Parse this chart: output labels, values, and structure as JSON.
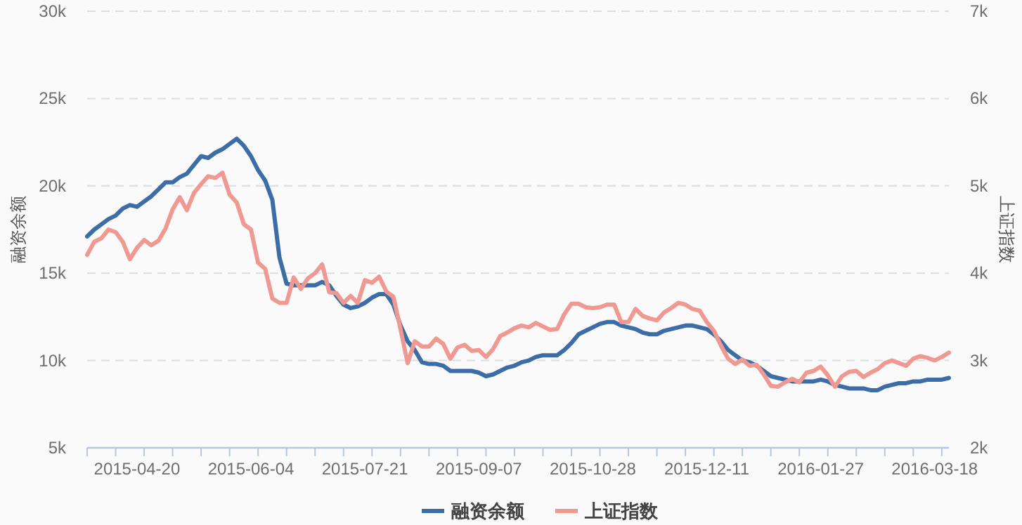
{
  "chart_data": {
    "type": "line",
    "categories": [
      null,
      null,
      null,
      null,
      null,
      null,
      null,
      "2015-04-20",
      null,
      null,
      null,
      null,
      null,
      null,
      null,
      null,
      null,
      null,
      null,
      null,
      null,
      null,
      null,
      "2015-06-04",
      null,
      null,
      null,
      null,
      null,
      null,
      null,
      null,
      null,
      null,
      null,
      null,
      null,
      null,
      null,
      "2015-07-21",
      null,
      null,
      null,
      null,
      null,
      null,
      null,
      null,
      null,
      null,
      null,
      null,
      null,
      null,
      null,
      "2015-09-07",
      null,
      null,
      null,
      null,
      null,
      null,
      null,
      null,
      null,
      null,
      null,
      null,
      null,
      null,
      null,
      "2015-10-28",
      null,
      null,
      null,
      null,
      null,
      null,
      null,
      null,
      null,
      null,
      null,
      null,
      null,
      null,
      null,
      "2015-12-11",
      null,
      null,
      null,
      null,
      null,
      null,
      null,
      null,
      null,
      null,
      null,
      null,
      null,
      null,
      null,
      "2016-01-27",
      null,
      null,
      null,
      null,
      null,
      null,
      null,
      null,
      null,
      null,
      null,
      null,
      null,
      null,
      null,
      "2016-03-18",
      null,
      null
    ],
    "series": [
      {
        "name": "融资余额",
        "color": "#3d6da7",
        "values": [
          17100,
          17500,
          17800,
          18100,
          18300,
          18700,
          18900,
          18800,
          19100,
          19400,
          19800,
          20200,
          20200,
          20500,
          20700,
          21200,
          21700,
          21600,
          21900,
          22100,
          22400,
          22700,
          22300,
          21700,
          20900,
          20300,
          19200,
          15900,
          14400,
          14300,
          14300,
          14300,
          14300,
          14500,
          14300,
          13700,
          13200,
          13000,
          13100,
          13300,
          13600,
          13800,
          13800,
          13200,
          12000,
          11100,
          10600,
          9900,
          9800,
          9800,
          9700,
          9400,
          9400,
          9400,
          9400,
          9300,
          9100,
          9200,
          9400,
          9600,
          9700,
          9900,
          10000,
          10200,
          10300,
          10300,
          10300,
          10600,
          11000,
          11500,
          11700,
          11900,
          12100,
          12200,
          12200,
          12000,
          11900,
          11800,
          11600,
          11500,
          11500,
          11700,
          11800,
          11900,
          12000,
          12000,
          11900,
          11800,
          11500,
          11100,
          10600,
          10300,
          10000,
          9900,
          9700,
          9400,
          9100,
          9000,
          8900,
          8800,
          8800,
          8800,
          8800,
          8900,
          8800,
          8600,
          8500,
          8400,
          8400,
          8400,
          8300,
          8300,
          8500,
          8600,
          8700,
          8700,
          8800,
          8800,
          8900,
          8900,
          8900,
          9000
        ]
      },
      {
        "name": "上证指数",
        "color": "#ef9992",
        "axis": "y2",
        "values": [
          4210,
          4360,
          4400,
          4500,
          4470,
          4360,
          4160,
          4290,
          4380,
          4320,
          4370,
          4510,
          4730,
          4870,
          4720,
          4920,
          5020,
          5110,
          5090,
          5150,
          4900,
          4810,
          4560,
          4500,
          4120,
          4050,
          3710,
          3660,
          3660,
          3950,
          3820,
          3940,
          4000,
          4100,
          3780,
          3770,
          3660,
          3740,
          3660,
          3920,
          3890,
          3960,
          3790,
          3730,
          3360,
          2970,
          3220,
          3160,
          3160,
          3250,
          3190,
          3020,
          3150,
          3180,
          3110,
          3120,
          3040,
          3130,
          3280,
          3320,
          3370,
          3400,
          3380,
          3430,
          3390,
          3350,
          3360,
          3530,
          3650,
          3650,
          3610,
          3600,
          3610,
          3640,
          3640,
          3440,
          3440,
          3590,
          3510,
          3480,
          3460,
          3550,
          3600,
          3660,
          3640,
          3590,
          3570,
          3440,
          3340,
          3170,
          3020,
          2960,
          3010,
          2940,
          2950,
          2840,
          2710,
          2700,
          2750,
          2790,
          2750,
          2860,
          2880,
          2930,
          2830,
          2700,
          2820,
          2870,
          2880,
          2810,
          2860,
          2900,
          2970,
          3000,
          2970,
          2940,
          3020,
          3050,
          3030,
          3000,
          3040,
          3090
        ]
      }
    ],
    "ylabel": "融资余额",
    "y2label": "上证指数",
    "ylim": [
      5000,
      30000
    ],
    "yticks": [
      {
        "value": 5000,
        "label": "5k"
      },
      {
        "value": 10000,
        "label": "10k"
      },
      {
        "value": 15000,
        "label": "15k"
      },
      {
        "value": 20000,
        "label": "20k"
      },
      {
        "value": 25000,
        "label": "25k"
      },
      {
        "value": 30000,
        "label": "30k"
      }
    ],
    "y2lim": [
      2000,
      7000
    ],
    "y2ticks": [
      {
        "value": 2000,
        "label": "2k"
      },
      {
        "value": 3000,
        "label": "3k"
      },
      {
        "value": 4000,
        "label": "4k"
      },
      {
        "value": 5000,
        "label": "5k"
      },
      {
        "value": 6000,
        "label": "6k"
      },
      {
        "value": 7000,
        "label": "7k"
      }
    ],
    "grid": "y",
    "legend": "bottom"
  }
}
